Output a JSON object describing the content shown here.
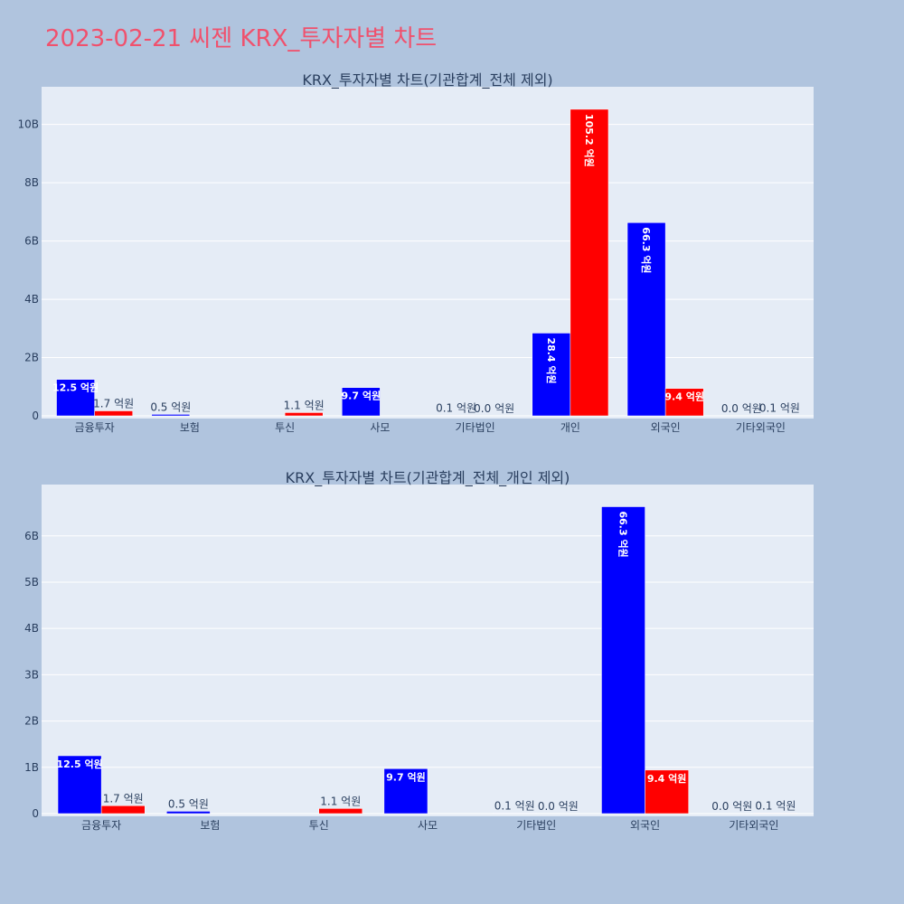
{
  "page": {
    "title": "2023-02-21 씨젠 KRX_투자자별 차트"
  },
  "colors": {
    "buy": "#0000ff",
    "sell": "#ff0000",
    "plot_bg": "#e5ecf6",
    "page_bg": "#b0c4de"
  },
  "chart_data": [
    {
      "type": "bar",
      "title": "KRX_투자자별 차트(기관합계_전체 제외)",
      "categories": [
        "금융투자",
        "보험",
        "투신",
        "사모",
        "기타법인",
        "개인",
        "외국인",
        "기타외국인"
      ],
      "series": [
        {
          "color": "#0000ff",
          "values": [
            1.25,
            0.05,
            0,
            0.97,
            0.01,
            2.84,
            6.63,
            0.0
          ],
          "labels": [
            "12.5 억원",
            "0.5 억원",
            "",
            "9.7 억원",
            "0.1 억원",
            "28.4 억원",
            "66.3 억원",
            "0.0 억원"
          ]
        },
        {
          "color": "#ff0000",
          "values": [
            0.17,
            0,
            0.11,
            0,
            0.0,
            10.52,
            0.94,
            0.01
          ],
          "labels": [
            "1.7 억원",
            "",
            "1.1 억원",
            "",
            "0.0 억원",
            "105.2 억원",
            "9.4 억원",
            "0.1 억원"
          ]
        }
      ],
      "yticks": [
        0,
        2,
        4,
        6,
        8,
        10
      ],
      "ytick_labels": [
        "0",
        "2B",
        "4B",
        "6B",
        "8B",
        "10B"
      ],
      "ylim": [
        0,
        11.2
      ],
      "grid": true
    },
    {
      "type": "bar",
      "title": "KRX_투자자별 차트(기관합계_전체_개인 제외)",
      "categories": [
        "금융투자",
        "보험",
        "투신",
        "사모",
        "기타법인",
        "외국인",
        "기타외국인"
      ],
      "series": [
        {
          "color": "#0000ff",
          "values": [
            1.25,
            0.05,
            0,
            0.97,
            0.01,
            6.63,
            0.0
          ],
          "labels": [
            "12.5 억원",
            "0.5 억원",
            "",
            "9.7 억원",
            "0.1 억원",
            "66.3 억원",
            "0.0 억원"
          ]
        },
        {
          "color": "#ff0000",
          "values": [
            0.17,
            0,
            0.11,
            0,
            0.0,
            0.94,
            0.01
          ],
          "labels": [
            "1.7 억원",
            "",
            "1.1 억원",
            "",
            "0.0 억원",
            "9.4 억원",
            "0.1 억원"
          ]
        }
      ],
      "yticks": [
        0,
        1,
        2,
        3,
        4,
        5,
        6
      ],
      "ytick_labels": [
        "0",
        "1B",
        "2B",
        "3B",
        "4B",
        "5B",
        "6B"
      ],
      "ylim": [
        0,
        7.05
      ],
      "grid": true
    }
  ]
}
